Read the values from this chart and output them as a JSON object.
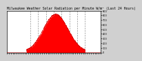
{
  "title": "Milwaukee Weather Solar Radiation per Minute W/m² (Last 24 Hours)",
  "title_fontsize": 3.5,
  "bg_color": "#d0d0d0",
  "plot_bg_color": "#ffffff",
  "fill_color": "#ff0000",
  "line_color": "#dd0000",
  "grid_color": "#888888",
  "x_num_points": 1440,
  "peak": 750,
  "sigma": 190,
  "peak_value": 820,
  "sunrise": 300,
  "sunset": 1200,
  "ylim": [
    0,
    900
  ],
  "xlim": [
    0,
    1440
  ],
  "dashed_lines_x": [
    360,
    480,
    600,
    720,
    840,
    960,
    1080,
    1200
  ],
  "y_tick_values": [
    0,
    100,
    200,
    300,
    400,
    500,
    600,
    700,
    800,
    900
  ],
  "x_tick_count": 49
}
